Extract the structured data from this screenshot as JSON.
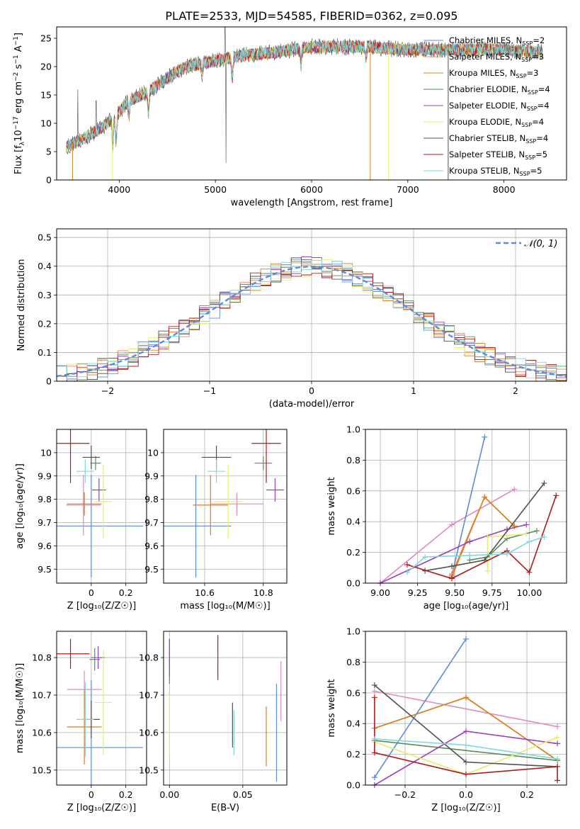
{
  "title": "PLATE=2533, MJD=54585, FIBERID=0362, z=0.095",
  "series_names": [
    "Chabrier MILES, N_SSP=2",
    "Salpeter MILES, N_SSP=3",
    "Kroupa MILES, N_SSP=3",
    "Chabrier ELODIE, N_SSP=4",
    "Salpeter ELODIE, N_SSP=4",
    "Kroupa ELODIE, N_SSP=4",
    "Chabrier STELIB, N_SSP=4",
    "Salpeter STELIB, N_SSP=5",
    "Kroupa STELIB, N_SSP=5"
  ],
  "colors": [
    "#5b8bdc",
    "#e8835a",
    "#d97f1e",
    "#5a8c5a",
    "#9b3fc0",
    "#e2ee6a",
    "#505050",
    "#b21a1a",
    "#7dd8dc"
  ],
  "legend_labels": [
    {
      "pre": "Chabrier MILES, N",
      "sub": "SSP",
      "post": "=2"
    },
    {
      "pre": "Salpeter MILES, N",
      "sub": "SSP",
      "post": "=3"
    },
    {
      "pre": "Kroupa MILES, N",
      "sub": "SSP",
      "post": "=3"
    },
    {
      "pre": "Chabrier ELODIE, N",
      "sub": "SSP",
      "post": "=4"
    },
    {
      "pre": "Salpeter ELODIE, N",
      "sub": "SSP",
      "post": "=4"
    },
    {
      "pre": "Kroupa ELODIE, N",
      "sub": "SSP",
      "post": "=4"
    },
    {
      "pre": "Chabrier STELIB, N",
      "sub": "SSP",
      "post": "=4"
    },
    {
      "pre": "Salpeter STELIB, N",
      "sub": "SSP",
      "post": "=5"
    },
    {
      "pre": "Kroupa STELIB, N",
      "sub": "SSP",
      "post": "=5"
    }
  ],
  "chart_data": [
    {
      "id": "spectrum",
      "type": "line",
      "xlabel": "wavelength [Angstrom, rest frame]",
      "ylabel_parts": {
        "pre": "Flux [f",
        "sub": "λ",
        "mid": "10",
        "sup": "−17",
        "post": " erg cm",
        "sup2": "−2",
        "post2": " s",
        "sup3": "−1",
        "post3": " A",
        "sup4": "−1",
        "post4": "]"
      },
      "xlim": [
        3350,
        8650
      ],
      "ylim": [
        0,
        27
      ],
      "xticks": [
        4000,
        5000,
        6000,
        7000,
        8000
      ],
      "yticks": [
        0,
        5,
        10,
        15,
        20,
        25
      ],
      "continuum": [
        [
          3450,
          5.8
        ],
        [
          3600,
          7
        ],
        [
          3800,
          9
        ],
        [
          3950,
          11
        ],
        [
          4100,
          14
        ],
        [
          4300,
          15.5
        ],
        [
          4500,
          18
        ],
        [
          4700,
          20
        ],
        [
          5000,
          21
        ],
        [
          5300,
          22
        ],
        [
          5600,
          22.5
        ],
        [
          6000,
          23.5
        ],
        [
          6500,
          23.5
        ],
        [
          7000,
          23
        ],
        [
          7500,
          23
        ],
        [
          8000,
          23
        ],
        [
          8400,
          22.5
        ]
      ],
      "absorption": [
        [
          3933,
          5
        ],
        [
          3968,
          5
        ],
        [
          4102,
          3
        ],
        [
          4304,
          4
        ],
        [
          4861,
          2
        ],
        [
          5175,
          4
        ],
        [
          5890,
          3
        ],
        [
          6563,
          2
        ]
      ],
      "spikes": [
        [
          3570,
          16
        ],
        [
          3760,
          14
        ],
        [
          5100,
          27
        ],
        [
          5110,
          3
        ]
      ],
      "dropouts": [
        [
          3515,
          0,
          "#d97f1e"
        ],
        [
          3930,
          0,
          "#e2ee6a"
        ],
        [
          6800,
          0,
          "#e2ee6a"
        ],
        [
          6610,
          0,
          "#d97f1e"
        ],
        [
          7420,
          0,
          "#505050"
        ]
      ]
    },
    {
      "id": "residuals",
      "type": "step",
      "xlabel": "(data-model)/error",
      "ylabel": "Normed distribution",
      "xlim": [
        -2.5,
        2.5
      ],
      "ylim": [
        0,
        0.53
      ],
      "xticks": [
        -2,
        -1,
        0,
        1,
        2
      ],
      "xtick_labels": [
        "−2",
        "−1",
        "0",
        "1",
        "2"
      ],
      "yticks": [
        0,
        0.1,
        0.2,
        0.3,
        0.4,
        0.5
      ],
      "legend": "𝒩(0, 1)",
      "bin_width": 0.1
    },
    {
      "id": "age_vs_Z",
      "type": "errorbar",
      "xlabel": "Z [log10(Z/Z☉)]",
      "ylabel": "age  [log10(age/yr)]",
      "xlim": [
        -0.2,
        0.32
      ],
      "ylim": [
        9.44,
        10.1
      ],
      "xticks": [
        0.0,
        0.2
      ],
      "yticks": [
        9.5,
        9.6,
        9.7,
        9.8,
        9.9,
        10.0
      ],
      "points": [
        {
          "x": 0.0,
          "y": 9.685,
          "xerr": 0.3,
          "yerr": 0.22
        },
        {
          "x": -0.045,
          "y": 9.775,
          "xerr": 0.1,
          "yerr": 0.13
        },
        {
          "x": -0.04,
          "y": 9.78,
          "xerr": 0.1,
          "yerr": 0.05
        },
        {
          "x": 0.025,
          "y": 9.955,
          "xerr": 0.03,
          "yerr": 0.03
        },
        {
          "x": 0.045,
          "y": 9.84,
          "xerr": 0.04,
          "yerr": 0.05
        },
        {
          "x": 0.07,
          "y": 9.79,
          "xerr": 0.05,
          "yerr": 0.16
        },
        {
          "x": 0.0,
          "y": 9.98,
          "xerr": 0.05,
          "yerr": 0.05
        },
        {
          "x": -0.12,
          "y": 10.04,
          "xerr": 0.11,
          "yerr": 0.17
        },
        {
          "x": -0.035,
          "y": 9.92,
          "xerr": 0.05,
          "yerr": 0.05
        }
      ]
    },
    {
      "id": "age_vs_mass",
      "type": "errorbar",
      "xlabel": "mass [log10(M/M☉)]",
      "ylabel": "",
      "xlim": [
        10.46,
        10.88
      ],
      "ylim": [
        9.44,
        10.1
      ],
      "xticks": [
        10.6,
        10.8
      ],
      "yticks": [
        9.5,
        9.6,
        9.7,
        9.8,
        9.9,
        10.0
      ],
      "points": [
        {
          "x": 10.57,
          "y": 9.685,
          "xerr": 0.12,
          "yerr": 0.22
        },
        {
          "x": 10.71,
          "y": 9.78,
          "xerr": 0.09,
          "yerr": 0.05
        },
        {
          "x": 10.62,
          "y": 9.775,
          "xerr": 0.06,
          "yerr": 0.13
        },
        {
          "x": 10.8,
          "y": 9.955,
          "xerr": 0.03,
          "yerr": 0.03
        },
        {
          "x": 10.84,
          "y": 9.84,
          "xerr": 0.03,
          "yerr": 0.05
        },
        {
          "x": 10.68,
          "y": 9.79,
          "xerr": 0.05,
          "yerr": 0.16
        },
        {
          "x": 10.64,
          "y": 9.98,
          "xerr": 0.05,
          "yerr": 0.05
        },
        {
          "x": 10.81,
          "y": 10.04,
          "xerr": 0.05,
          "yerr": 0.17
        },
        {
          "x": 10.64,
          "y": 9.92,
          "xerr": 0.03,
          "yerr": 0.05
        }
      ]
    },
    {
      "id": "weight_vs_age",
      "type": "line",
      "xlabel": "age  [log10(age/yr)]",
      "ylabel": "mass weight",
      "xlim": [
        8.9,
        10.25
      ],
      "ylim": [
        0,
        1
      ],
      "xticks": [
        9.0,
        9.25,
        9.5,
        9.75,
        10.0
      ],
      "xtick_labels": [
        "9.00",
        "9.25",
        "9.50",
        "9.75",
        "10.00"
      ],
      "yticks": [
        0,
        0.2,
        0.4,
        0.6,
        0.8,
        1.0
      ],
      "ytick_labels": [
        "0.0",
        "0.2",
        "0.4",
        "0.6",
        "0.8",
        "1.0"
      ],
      "series": [
        {
          "x": [
            9.48,
            9.7
          ],
          "y": [
            0.05,
            0.95
          ]
        },
        {
          "x": [
            9.48,
            9.7,
            9.9
          ],
          "y": [
            0.06,
            0.56,
            0.37
          ]
        },
        {
          "x": [
            9.48,
            9.7,
            9.9
          ],
          "y": [
            0.04,
            0.56,
            0.37
          ]
        },
        {
          "x": [
            9.6,
            9.72,
            9.85,
            10.05
          ],
          "y": [
            0.15,
            0.17,
            0.29,
            0.34
          ]
        },
        {
          "x": [
            9.0,
            9.6,
            9.85,
            9.98
          ],
          "y": [
            0.0,
            0.27,
            0.35,
            0.38
          ]
        },
        {
          "x": [
            9.72,
            9.72,
            9.85,
            9.98
          ],
          "y": [
            0.08,
            0.3,
            0.31,
            0.32
          ]
        },
        {
          "x": [
            9.3,
            9.48,
            9.7,
            10.1
          ],
          "y": [
            0.08,
            0.11,
            0.15,
            0.65
          ]
        },
        {
          "x": [
            9.18,
            9.48,
            9.85,
            10.0,
            10.18
          ],
          "y": [
            0.12,
            0.03,
            0.21,
            0.07,
            0.57
          ]
        },
        {
          "x": [
            9.18,
            9.3,
            9.6,
            9.85,
            10.0,
            10.1
          ],
          "y": [
            0.07,
            0.17,
            0.18,
            0.19,
            0.27,
            0.3
          ]
        }
      ],
      "pink": {
        "x": [
          9.0,
          9.48,
          9.9
        ],
        "y": [
          0.0,
          0.38,
          0.61
        ],
        "color": "#e08ac0"
      }
    },
    {
      "id": "mass_vs_Z",
      "type": "errorbar",
      "xlabel": "Z [log10(Z/Z☉)]",
      "ylabel": "mass [log10(M/M☉)]",
      "xlim": [
        -0.2,
        0.32
      ],
      "ylim": [
        10.46,
        10.87
      ],
      "xticks": [
        0.0,
        0.2
      ],
      "yticks": [
        10.5,
        10.6,
        10.7,
        10.8
      ],
      "points": [
        {
          "x": 0.0,
          "y": 10.56,
          "xerr": 0.3,
          "yerr": 0.18
        },
        {
          "x": -0.04,
          "y": 10.715,
          "xerr": 0.1,
          "yerr": 0.05
        },
        {
          "x": -0.04,
          "y": 10.615,
          "xerr": 0.1,
          "yerr": 0.1
        },
        {
          "x": 0.02,
          "y": 10.795,
          "xerr": 0.03,
          "yerr": 0.03
        },
        {
          "x": 0.04,
          "y": 10.8,
          "xerr": 0.04,
          "yerr": 0.03
        },
        {
          "x": 0.07,
          "y": 10.68,
          "xerr": 0.05,
          "yerr": 0.14
        },
        {
          "x": 0.0,
          "y": 10.635,
          "xerr": 0.05,
          "yerr": 0.05
        },
        {
          "x": -0.12,
          "y": 10.81,
          "xerr": 0.11,
          "yerr": 0.04
        },
        {
          "x": -0.035,
          "y": 10.635,
          "xerr": 0.05,
          "yerr": 0.1
        }
      ]
    },
    {
      "id": "mass_vs_ebv",
      "type": "errorbar",
      "xlabel": "E(B-V)",
      "ylabel": "",
      "xlim": [
        -0.004,
        0.08
      ],
      "ylim": [
        10.46,
        10.87
      ],
      "xticks": [
        0.0,
        0.05
      ],
      "xtick_labels": [
        "0.00",
        "0.05"
      ],
      "yticks": [
        10.5,
        10.6,
        10.7,
        10.8
      ],
      "points": [
        {
          "x": 0.073,
          "y": 10.6,
          "xerr": 0,
          "yerr": 0.13,
          "c": 0
        },
        {
          "x": 0.076,
          "y": 10.71,
          "xerr": 0,
          "yerr": 0.08,
          "c": 9
        },
        {
          "x": 0.066,
          "y": 10.59,
          "xerr": 0,
          "yerr": 0.08,
          "c": 2
        },
        {
          "x": 0.0,
          "y": 10.79,
          "xerr": 0,
          "yerr": 0.06,
          "c": 3
        },
        {
          "x": 0.0,
          "y": 10.8,
          "xerr": 0,
          "yerr": 0.05,
          "c": 4
        },
        {
          "x": 0.0,
          "y": 10.62,
          "xerr": 0,
          "yerr": 0.08,
          "c": 5
        },
        {
          "x": 0.043,
          "y": 10.62,
          "xerr": 0,
          "yerr": 0.06,
          "c": 6
        },
        {
          "x": 0.033,
          "y": 10.8,
          "xerr": 0,
          "yerr": 0.06,
          "c": 7
        },
        {
          "x": 0.044,
          "y": 10.6,
          "xerr": 0,
          "yerr": 0.06,
          "c": 8
        }
      ]
    },
    {
      "id": "weight_vs_Z",
      "type": "line",
      "xlabel": "Z [log10(Z/Z☉)]",
      "ylabel": "mass weight",
      "xlim": [
        -0.33,
        0.33
      ],
      "ylim": [
        0,
        1
      ],
      "xticks": [
        -0.2,
        0.0,
        0.2
      ],
      "xtick_labels": [
        "−0.2",
        "0.0",
        "0.2"
      ],
      "yticks": [
        0,
        0.2,
        0.4,
        0.6,
        0.8,
        1.0
      ],
      "ytick_labels": [
        "0.0",
        "0.2",
        "0.4",
        "0.6",
        "0.8",
        "1.0"
      ],
      "series": [
        {
          "x": [
            -0.3,
            0.0
          ],
          "y": [
            0.05,
            0.95
          ]
        },
        {
          "x": [
            -0.3,
            0.0,
            0.3
          ],
          "y": [
            0.37,
            0.57,
            0.16
          ]
        },
        {
          "x": [
            -0.3,
            0.0,
            0.3
          ],
          "y": [
            0.37,
            0.57,
            0.16
          ]
        },
        {
          "x": [
            -0.3,
            0.3
          ],
          "y": [
            0.29,
            0.16
          ]
        },
        {
          "x": [
            -0.3,
            0.0,
            0.3
          ],
          "y": [
            0.0,
            0.35,
            0.27
          ]
        },
        {
          "x": [
            -0.3,
            0.0,
            0.3
          ],
          "y": [
            0.28,
            0.07,
            0.31
          ]
        },
        {
          "x": [
            -0.3,
            0.0,
            0.3
          ],
          "y": [
            0.65,
            0.15,
            0.12
          ]
        },
        {
          "x": [
            -0.3,
            -0.3,
            0.0,
            0.3,
            0.3
          ],
          "y": [
            0.57,
            0.21,
            0.07,
            0.12,
            0.03
          ]
        },
        {
          "x": [
            -0.3,
            0.0,
            0.3
          ],
          "y": [
            0.3,
            0.26,
            0.17
          ]
        }
      ],
      "pink": {
        "x": [
          -0.3,
          0.3
        ],
        "y": [
          0.61,
          0.38
        ],
        "color": "#e08ac0"
      }
    }
  ]
}
